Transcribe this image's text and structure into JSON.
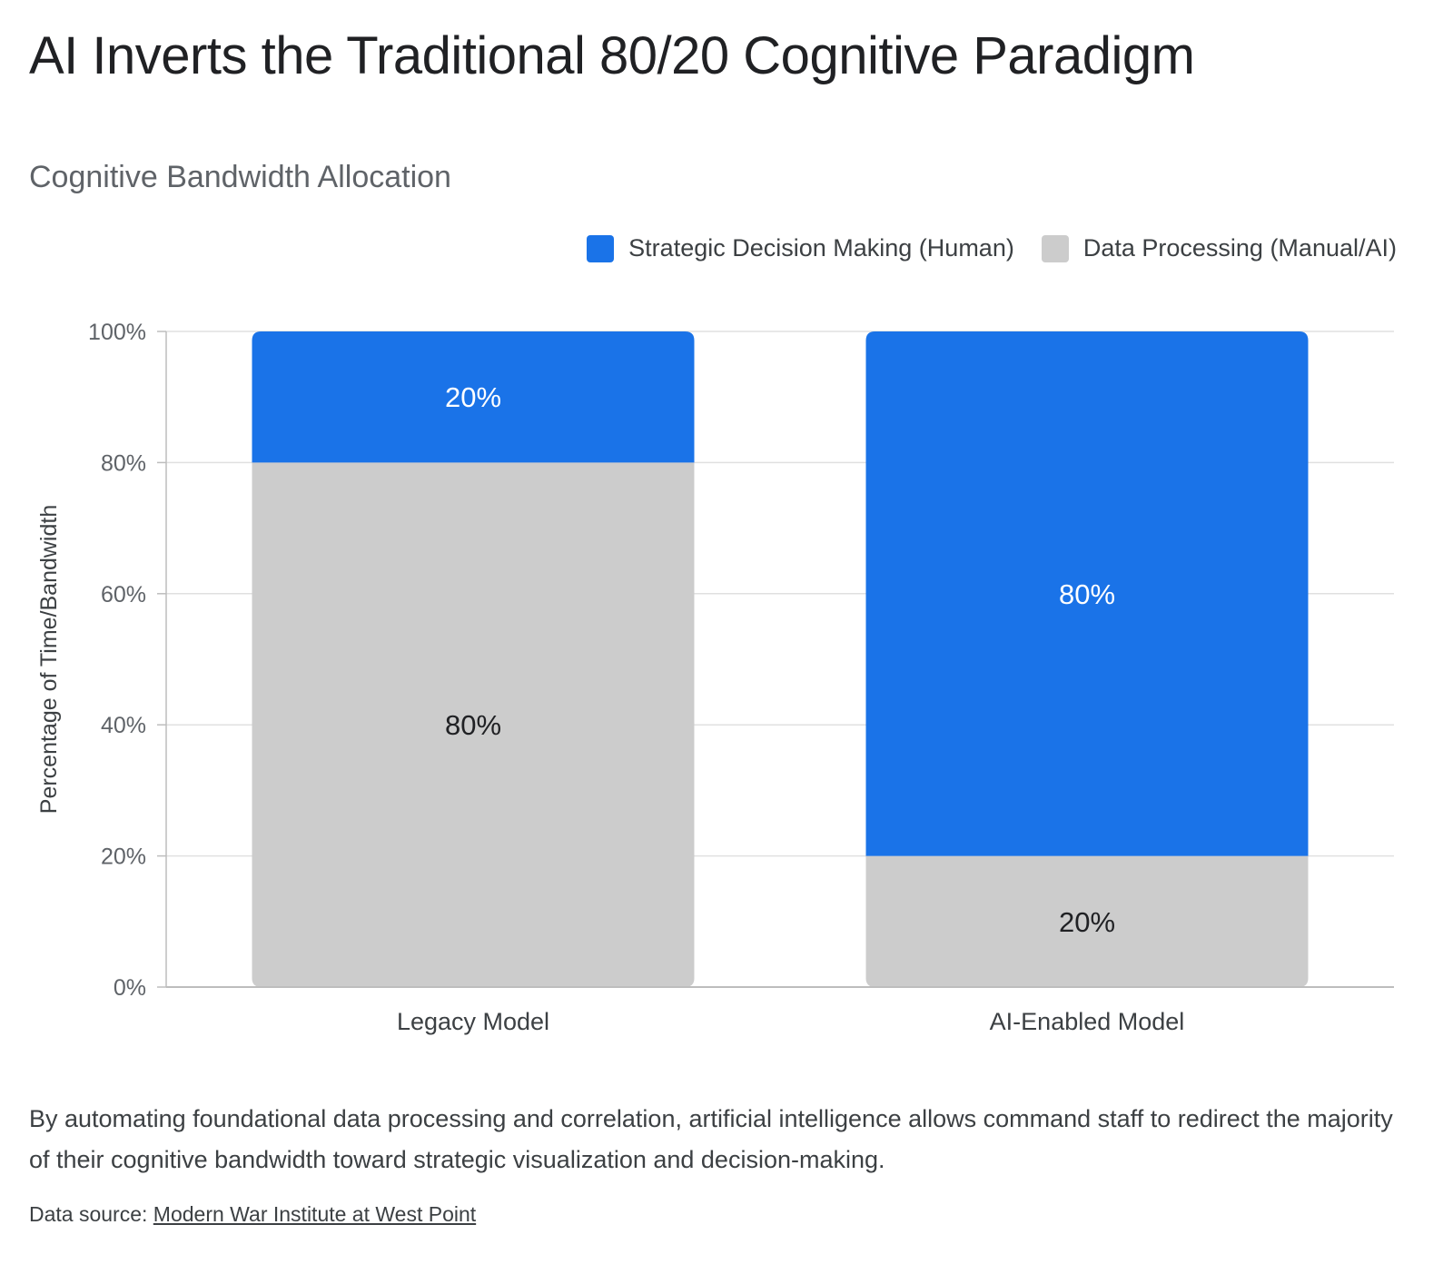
{
  "title": "AI Inverts the Traditional 80/20 Cognitive Paradigm",
  "subtitle": "Cognitive Bandwidth Allocation",
  "caption": "By automating foundational data processing and correlation, artificial intelligence allows command staff to redirect the majority of their cognitive bandwidth toward strategic visualization and decision-making.",
  "source": {
    "prefix": "Data source: ",
    "link_text": "Modern War Institute at West Point"
  },
  "colors": {
    "strategic": "#1a73e8",
    "processing": "#cccccc",
    "grid": "#e0e0e0",
    "axis": "#bdbdbd"
  },
  "chart_data": {
    "type": "bar",
    "stacked": true,
    "categories": [
      "Legacy Model",
      "AI-Enabled Model"
    ],
    "series": [
      {
        "name": "Data Processing (Manual/AI)",
        "values": [
          80,
          20
        ],
        "labels": [
          "80%",
          "20%"
        ]
      },
      {
        "name": "Strategic Decision Making (Human)",
        "values": [
          20,
          80
        ],
        "labels": [
          "20%",
          "80%"
        ]
      }
    ],
    "ylabel": "Percentage of Time/Bandwidth",
    "xlabel": "",
    "ylim": [
      0,
      100
    ],
    "yticks": [
      "0%",
      "20%",
      "40%",
      "60%",
      "80%",
      "100%"
    ],
    "legend_position": "top-right",
    "grid": true
  }
}
